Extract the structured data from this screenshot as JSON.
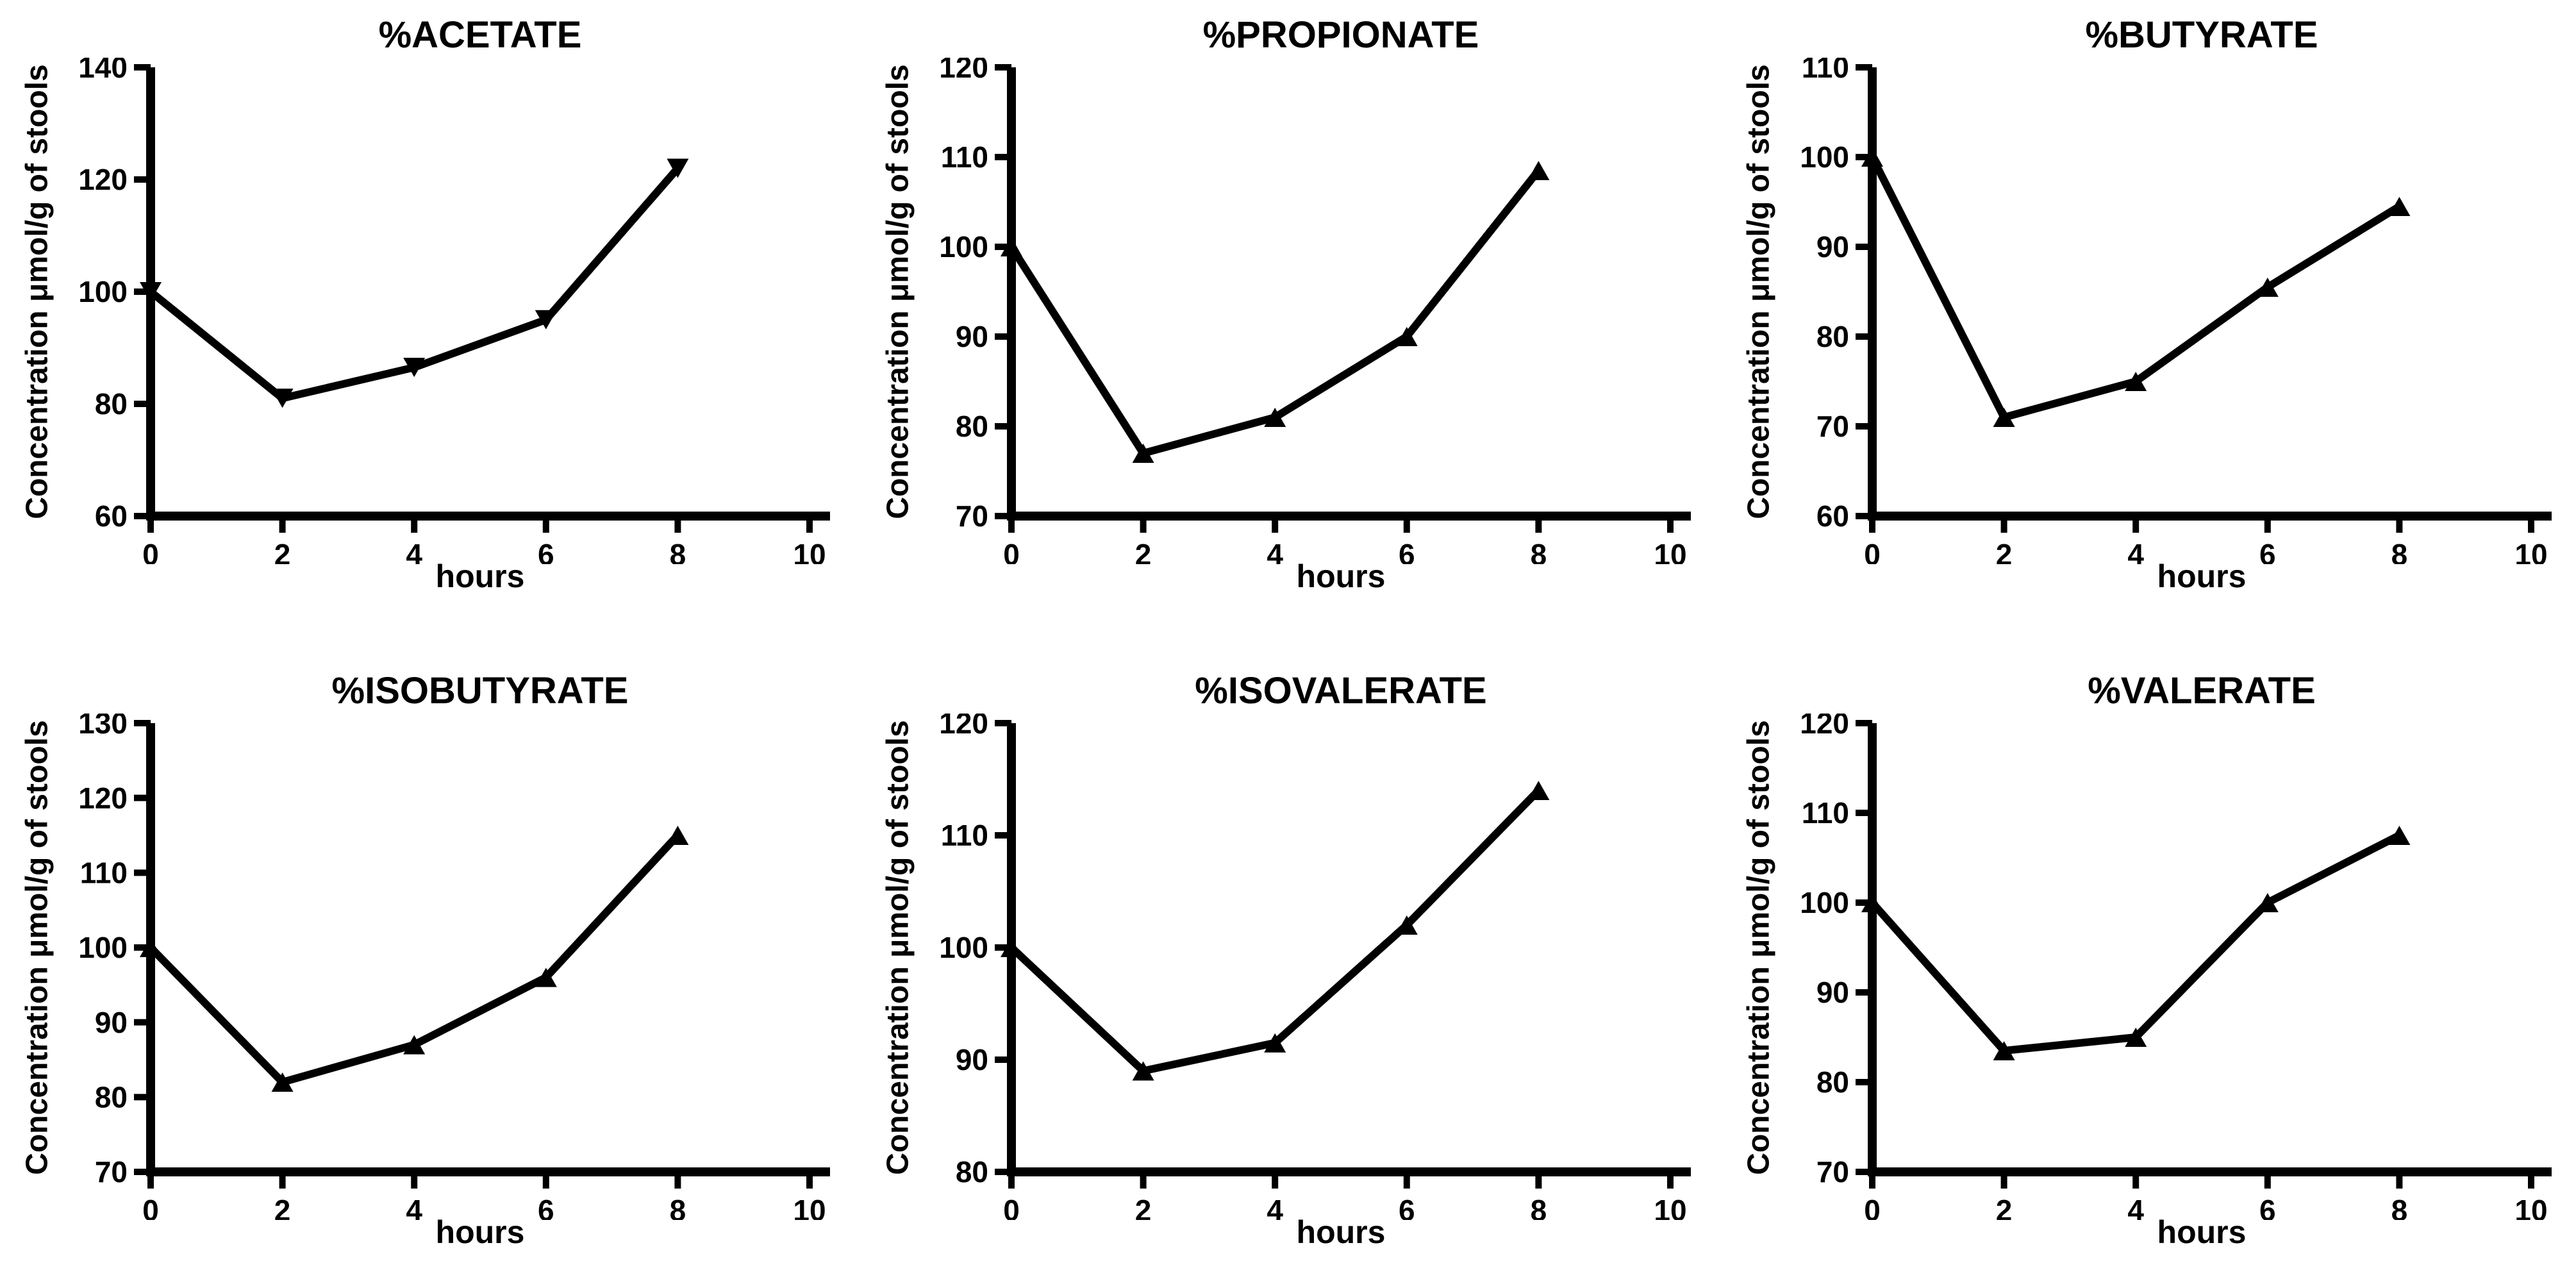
{
  "page": {
    "background": "#ffffff",
    "foreground": "#000000"
  },
  "chart_data": [
    {
      "type": "line",
      "title": "%ACETATE",
      "xlabel": "hours",
      "ylabel": "Concentration μmol/g of stools",
      "x": [
        0,
        2,
        4,
        6,
        8
      ],
      "y": [
        100,
        81,
        86.5,
        95,
        122
      ],
      "xlim": [
        0,
        10
      ],
      "ylim": [
        60,
        140
      ],
      "xticks": [
        0,
        2,
        4,
        6,
        8,
        10
      ],
      "yticks": [
        60,
        80,
        100,
        120,
        140
      ],
      "marker": "triangle-down",
      "line_color": "#000000",
      "grid": false,
      "legend": "none"
    },
    {
      "type": "line",
      "title": "%PROPIONATE",
      "xlabel": "hours",
      "ylabel": "Concentration μmol/g of stools",
      "x": [
        0,
        2,
        4,
        6,
        8
      ],
      "y": [
        100,
        77,
        81,
        90,
        108.5
      ],
      "xlim": [
        0,
        10
      ],
      "ylim": [
        70,
        120
      ],
      "xticks": [
        0,
        2,
        4,
        6,
        8,
        10
      ],
      "yticks": [
        70,
        80,
        90,
        100,
        110,
        120
      ],
      "marker": "triangle-up",
      "line_color": "#000000",
      "grid": false,
      "legend": "none"
    },
    {
      "type": "line",
      "title": "%BUTYRATE",
      "xlabel": "hours",
      "ylabel": "Concentration μmol/g of stools",
      "x": [
        0,
        2,
        4,
        6,
        8
      ],
      "y": [
        100,
        71,
        75,
        85.5,
        94.5
      ],
      "xlim": [
        0,
        10
      ],
      "ylim": [
        60,
        110
      ],
      "xticks": [
        0,
        2,
        4,
        6,
        8,
        10
      ],
      "yticks": [
        60,
        70,
        80,
        90,
        100,
        110
      ],
      "marker": "triangle-up",
      "line_color": "#000000",
      "grid": false,
      "legend": "none"
    },
    {
      "type": "line",
      "title": "%ISOBUTYRATE",
      "xlabel": "hours",
      "ylabel": "Concentration μmol/g of stools",
      "x": [
        0,
        2,
        4,
        6,
        8
      ],
      "y": [
        100,
        82,
        87,
        96,
        115
      ],
      "xlim": [
        0,
        10
      ],
      "ylim": [
        70,
        130
      ],
      "xticks": [
        0,
        2,
        4,
        6,
        8,
        10
      ],
      "yticks": [
        70,
        80,
        90,
        100,
        110,
        120,
        130
      ],
      "marker": "triangle-up",
      "line_color": "#000000",
      "grid": false,
      "legend": "none"
    },
    {
      "type": "line",
      "title": "%ISOVALERATE",
      "xlabel": "hours",
      "ylabel": "Concentration μmol/g of stools",
      "x": [
        0,
        2,
        4,
        6,
        8
      ],
      "y": [
        100,
        89,
        91.5,
        102,
        114
      ],
      "xlim": [
        0,
        10
      ],
      "ylim": [
        80,
        120
      ],
      "xticks": [
        0,
        2,
        4,
        6,
        8,
        10
      ],
      "yticks": [
        80,
        90,
        100,
        110,
        120
      ],
      "marker": "triangle-up",
      "line_color": "#000000",
      "grid": false,
      "legend": "none"
    },
    {
      "type": "line",
      "title": "%VALERATE",
      "xlabel": "hours",
      "ylabel": "Concentration μmol/g of stools",
      "x": [
        0,
        2,
        4,
        6,
        8
      ],
      "y": [
        100,
        83.5,
        85,
        100,
        107.5
      ],
      "xlim": [
        0,
        10
      ],
      "ylim": [
        70,
        120
      ],
      "xticks": [
        0,
        2,
        4,
        6,
        8,
        10
      ],
      "yticks": [
        70,
        80,
        90,
        100,
        110,
        120
      ],
      "marker": "triangle-up",
      "line_color": "#000000",
      "grid": false,
      "legend": "none"
    }
  ]
}
